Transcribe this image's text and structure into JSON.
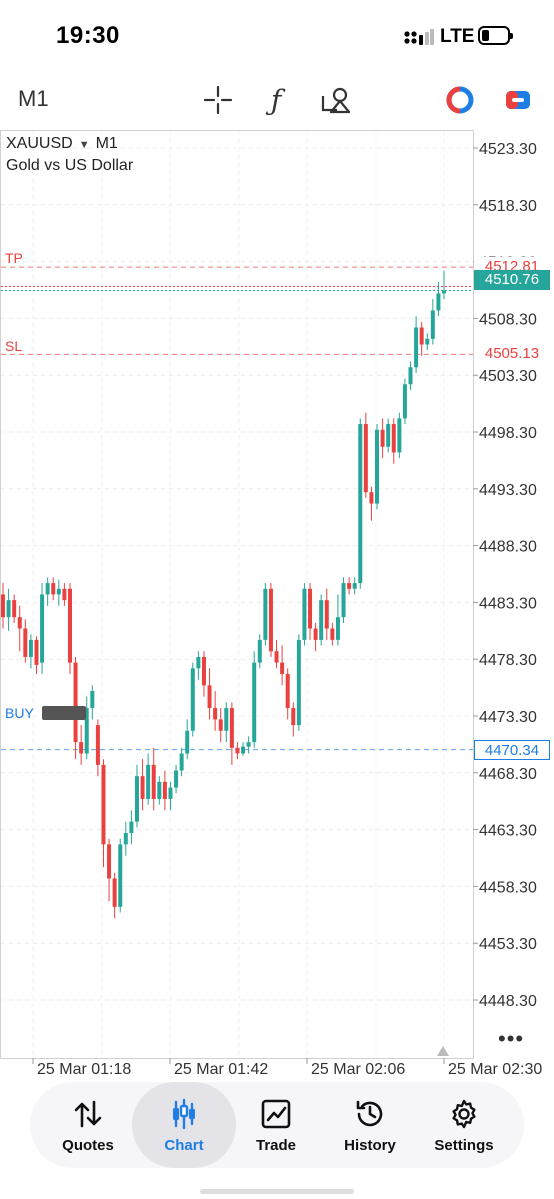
{
  "status_bar": {
    "time": "19:30",
    "network": "LTE"
  },
  "toolbar": {
    "timeframe": "M1",
    "icons": [
      "crosshair-icon",
      "function-icon",
      "objects-icon",
      "signal-icon",
      "trade-icon"
    ],
    "colors": {
      "red": "#e8413f",
      "blue": "#1e7ee6",
      "teal": "#26a69a"
    }
  },
  "chart": {
    "symbol": "XAUUSD",
    "timeframe": "M1",
    "description": "Gold vs US Dollar",
    "tp_label": "TP",
    "sl_label": "SL",
    "buy_label": "BUY",
    "more": "•••"
  },
  "chart_data": {
    "type": "candlestick",
    "symbol": "XAUUSD",
    "timeframe": "M1",
    "ylim": [
      4443.3,
      4527.3
    ],
    "y_ticks": [
      "4523.30",
      "4518.30",
      "4513.30",
      "4508.30",
      "4503.30",
      "4498.30",
      "4493.30",
      "4488.30",
      "4483.30",
      "4478.30",
      "4473.30",
      "4468.30",
      "4463.30",
      "4458.30",
      "4453.30",
      "4448.30"
    ],
    "x_ticks": [
      "25 Mar 01:18",
      "25 Mar 01:42",
      "25 Mar 02:06",
      "25 Mar 02:30"
    ],
    "levels": {
      "tp": {
        "price": "4512.81",
        "value": 4512.81,
        "color": "#e8413f"
      },
      "sl": {
        "price": "4505.13",
        "value": 4505.13,
        "color": "#e8413f"
      },
      "buy": {
        "price": "4470.34",
        "value": 4470.34,
        "color": "#1e7ee6"
      },
      "current": {
        "price": "4510.76",
        "value": 4510.76,
        "color": "#26a69a"
      }
    },
    "up_color": "#26a69a",
    "down_color": "#e8413f",
    "candles": [
      {
        "o": 4484.0,
        "h": 4485.0,
        "l": 4481.0,
        "c": 4482.0
      },
      {
        "o": 4482.0,
        "h": 4484.5,
        "l": 4480.8,
        "c": 4483.5
      },
      {
        "o": 4483.5,
        "h": 4484.0,
        "l": 4481.5,
        "c": 4482.0
      },
      {
        "o": 4482.0,
        "h": 4483.0,
        "l": 4479.0,
        "c": 4481.0
      },
      {
        "o": 4481.0,
        "h": 4481.8,
        "l": 4478.0,
        "c": 4478.5
      },
      {
        "o": 4478.5,
        "h": 4480.5,
        "l": 4477.5,
        "c": 4480.0
      },
      {
        "o": 4480.0,
        "h": 4480.3,
        "l": 4477.0,
        "c": 4477.8
      },
      {
        "o": 4478.0,
        "h": 4485.0,
        "l": 4477.0,
        "c": 4484.0
      },
      {
        "o": 4484.0,
        "h": 4485.5,
        "l": 4483.0,
        "c": 4485.0
      },
      {
        "o": 4485.0,
        "h": 4485.5,
        "l": 4483.5,
        "c": 4484.0
      },
      {
        "o": 4484.0,
        "h": 4485.3,
        "l": 4483.0,
        "c": 4484.5
      },
      {
        "o": 4484.5,
        "h": 4485.0,
        "l": 4483.0,
        "c": 4483.5
      },
      {
        "o": 4484.5,
        "h": 4485.0,
        "l": 4477.0,
        "c": 4478.0
      },
      {
        "o": 4478.0,
        "h": 4478.5,
        "l": 4469.5,
        "c": 4471.0
      },
      {
        "o": 4471.0,
        "h": 4472.5,
        "l": 4469.0,
        "c": 4470.0
      },
      {
        "o": 4470.0,
        "h": 4475.0,
        "l": 4469.5,
        "c": 4474.0
      },
      {
        "o": 4474.0,
        "h": 4476.0,
        "l": 4473.0,
        "c": 4475.5
      },
      {
        "o": 4472.5,
        "h": 4473.0,
        "l": 4468.0,
        "c": 4469.0
      },
      {
        "o": 4469.0,
        "h": 4469.5,
        "l": 4460.0,
        "c": 4462.0
      },
      {
        "o": 4462.0,
        "h": 4462.5,
        "l": 4457.0,
        "c": 4459.0
      },
      {
        "o": 4459.0,
        "h": 4459.5,
        "l": 4455.5,
        "c": 4456.5
      },
      {
        "o": 4456.5,
        "h": 4462.5,
        "l": 4456.0,
        "c": 4462.0
      },
      {
        "o": 4462.0,
        "h": 4464.0,
        "l": 4461.0,
        "c": 4463.0
      },
      {
        "o": 4463.0,
        "h": 4465.0,
        "l": 4462.0,
        "c": 4464.0
      },
      {
        "o": 4464.0,
        "h": 4469.0,
        "l": 4463.5,
        "c": 4468.0
      },
      {
        "o": 4468.0,
        "h": 4469.5,
        "l": 4465.0,
        "c": 4466.0
      },
      {
        "o": 4466.0,
        "h": 4470.0,
        "l": 4465.5,
        "c": 4469.0
      },
      {
        "o": 4469.0,
        "h": 4470.5,
        "l": 4465.0,
        "c": 4466.0
      },
      {
        "o": 4466.0,
        "h": 4468.0,
        "l": 4465.5,
        "c": 4467.5
      },
      {
        "o": 4467.5,
        "h": 4468.5,
        "l": 4465.0,
        "c": 4466.0
      },
      {
        "o": 4466.0,
        "h": 4467.5,
        "l": 4465.0,
        "c": 4467.0
      },
      {
        "o": 4467.0,
        "h": 4469.0,
        "l": 4466.5,
        "c": 4468.5
      },
      {
        "o": 4468.5,
        "h": 4470.5,
        "l": 4468.0,
        "c": 4470.0
      },
      {
        "o": 4470.0,
        "h": 4473.0,
        "l": 4469.5,
        "c": 4472.0
      },
      {
        "o": 4472.0,
        "h": 4478.0,
        "l": 4471.5,
        "c": 4477.5
      },
      {
        "o": 4477.5,
        "h": 4479.0,
        "l": 4476.5,
        "c": 4478.5
      },
      {
        "o": 4478.5,
        "h": 4479.0,
        "l": 4475.0,
        "c": 4476.0
      },
      {
        "o": 4476.0,
        "h": 4477.5,
        "l": 4473.0,
        "c": 4474.0
      },
      {
        "o": 4474.0,
        "h": 4475.5,
        "l": 4472.0,
        "c": 4473.0
      },
      {
        "o": 4473.0,
        "h": 4474.0,
        "l": 4471.0,
        "c": 4472.0
      },
      {
        "o": 4472.0,
        "h": 4474.5,
        "l": 4471.0,
        "c": 4474.0
      },
      {
        "o": 4474.0,
        "h": 4474.5,
        "l": 4469.0,
        "c": 4470.5
      },
      {
        "o": 4470.5,
        "h": 4471.0,
        "l": 4469.5,
        "c": 4470.0
      },
      {
        "o": 4470.0,
        "h": 4471.0,
        "l": 4469.8,
        "c": 4470.6
      },
      {
        "o": 4470.6,
        "h": 4471.5,
        "l": 4470.0,
        "c": 4471.0
      },
      {
        "o": 4471.0,
        "h": 4479.0,
        "l": 4470.5,
        "c": 4478.0
      },
      {
        "o": 4478.0,
        "h": 4480.5,
        "l": 4477.5,
        "c": 4480.0
      },
      {
        "o": 4480.0,
        "h": 4485.0,
        "l": 4479.5,
        "c": 4484.5
      },
      {
        "o": 4484.5,
        "h": 4485.0,
        "l": 4478.5,
        "c": 4479.0
      },
      {
        "o": 4479.0,
        "h": 4480.0,
        "l": 4477.5,
        "c": 4478.0
      },
      {
        "o": 4478.0,
        "h": 4479.5,
        "l": 4476.0,
        "c": 4477.0
      },
      {
        "o": 4477.0,
        "h": 4477.5,
        "l": 4473.0,
        "c": 4474.0
      },
      {
        "o": 4474.0,
        "h": 4474.5,
        "l": 4471.5,
        "c": 4472.5
      },
      {
        "o": 4472.5,
        "h": 4480.5,
        "l": 4472.0,
        "c": 4480.0
      },
      {
        "o": 4480.0,
        "h": 4485.0,
        "l": 4479.5,
        "c": 4484.5
      },
      {
        "o": 4484.5,
        "h": 4485.0,
        "l": 4480.0,
        "c": 4481.0
      },
      {
        "o": 4481.0,
        "h": 4481.5,
        "l": 4479.0,
        "c": 4480.0
      },
      {
        "o": 4480.0,
        "h": 4484.0,
        "l": 4479.5,
        "c": 4483.5
      },
      {
        "o": 4483.5,
        "h": 4484.5,
        "l": 4480.0,
        "c": 4481.0
      },
      {
        "o": 4481.0,
        "h": 4481.5,
        "l": 4479.5,
        "c": 4480.0
      },
      {
        "o": 4480.0,
        "h": 4484.0,
        "l": 4479.5,
        "c": 4482.0
      },
      {
        "o": 4482.0,
        "h": 4485.5,
        "l": 4481.5,
        "c": 4485.0
      },
      {
        "o": 4485.0,
        "h": 4485.5,
        "l": 4484.0,
        "c": 4484.5
      },
      {
        "o": 4484.5,
        "h": 4485.5,
        "l": 4484.0,
        "c": 4485.0
      },
      {
        "o": 4485.0,
        "h": 4499.5,
        "l": 4484.5,
        "c": 4499.0
      },
      {
        "o": 4499.0,
        "h": 4500.0,
        "l": 4492.5,
        "c": 4493.0
      },
      {
        "o": 4493.0,
        "h": 4493.5,
        "l": 4490.5,
        "c": 4492.0
      },
      {
        "o": 4492.0,
        "h": 4499.0,
        "l": 4491.5,
        "c": 4498.5
      },
      {
        "o": 4498.5,
        "h": 4499.5,
        "l": 4496.0,
        "c": 4497.0
      },
      {
        "o": 4497.0,
        "h": 4499.5,
        "l": 4496.5,
        "c": 4499.0
      },
      {
        "o": 4499.0,
        "h": 4499.5,
        "l": 4495.5,
        "c": 4496.5
      },
      {
        "o": 4496.5,
        "h": 4500.0,
        "l": 4496.0,
        "c": 4499.5
      },
      {
        "o": 4499.5,
        "h": 4503.0,
        "l": 4499.0,
        "c": 4502.5
      },
      {
        "o": 4502.5,
        "h": 4504.5,
        "l": 4502.0,
        "c": 4504.0
      },
      {
        "o": 4504.0,
        "h": 4508.5,
        "l": 4503.5,
        "c": 4507.5
      },
      {
        "o": 4507.5,
        "h": 4508.0,
        "l": 4505.0,
        "c": 4506.0
      },
      {
        "o": 4506.0,
        "h": 4507.0,
        "l": 4505.5,
        "c": 4506.5
      },
      {
        "o": 4506.5,
        "h": 4510.0,
        "l": 4506.0,
        "c": 4509.0
      },
      {
        "o": 4509.0,
        "h": 4511.5,
        "l": 4508.5,
        "c": 4510.5
      },
      {
        "o": 4510.5,
        "h": 4512.5,
        "l": 4510.0,
        "c": 4510.76
      }
    ]
  },
  "nav": {
    "items": [
      {
        "label": "Quotes",
        "icon": "quotes-icon"
      },
      {
        "label": "Chart",
        "icon": "chart-icon",
        "active": true
      },
      {
        "label": "Trade",
        "icon": "trade-chart-icon"
      },
      {
        "label": "History",
        "icon": "history-icon"
      },
      {
        "label": "Settings",
        "icon": "settings-gear-icon"
      }
    ]
  }
}
